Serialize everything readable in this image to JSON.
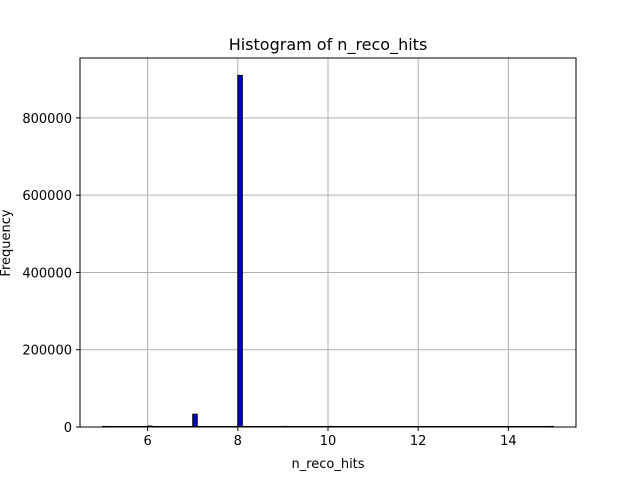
{
  "chart_data": {
    "type": "bar",
    "title": "Histogram of n_reco_hits",
    "xlabel": "n_reco_hits",
    "ylabel": "Frequency",
    "xlim": [
      4.5,
      15.5
    ],
    "ylim": [
      0,
      955000
    ],
    "x_ticks": [
      6,
      8,
      10,
      12,
      14
    ],
    "y_ticks": [
      0,
      200000,
      400000,
      600000,
      800000
    ],
    "grid": true,
    "bar_color": "#0000cc",
    "bar_edge_color": "#000000",
    "bins": [
      {
        "start": 5.0,
        "end": 5.1,
        "count": 50
      },
      {
        "start": 6.0,
        "end": 6.1,
        "count": 2500
      },
      {
        "start": 7.0,
        "end": 7.1,
        "count": 33000
      },
      {
        "start": 8.0,
        "end": 8.1,
        "count": 910000
      },
      {
        "start": 9.0,
        "end": 9.1,
        "count": 100
      },
      {
        "start": 10.0,
        "end": 10.1,
        "count": 5
      },
      {
        "start": 14.9,
        "end": 15.0,
        "count": 1
      }
    ]
  }
}
